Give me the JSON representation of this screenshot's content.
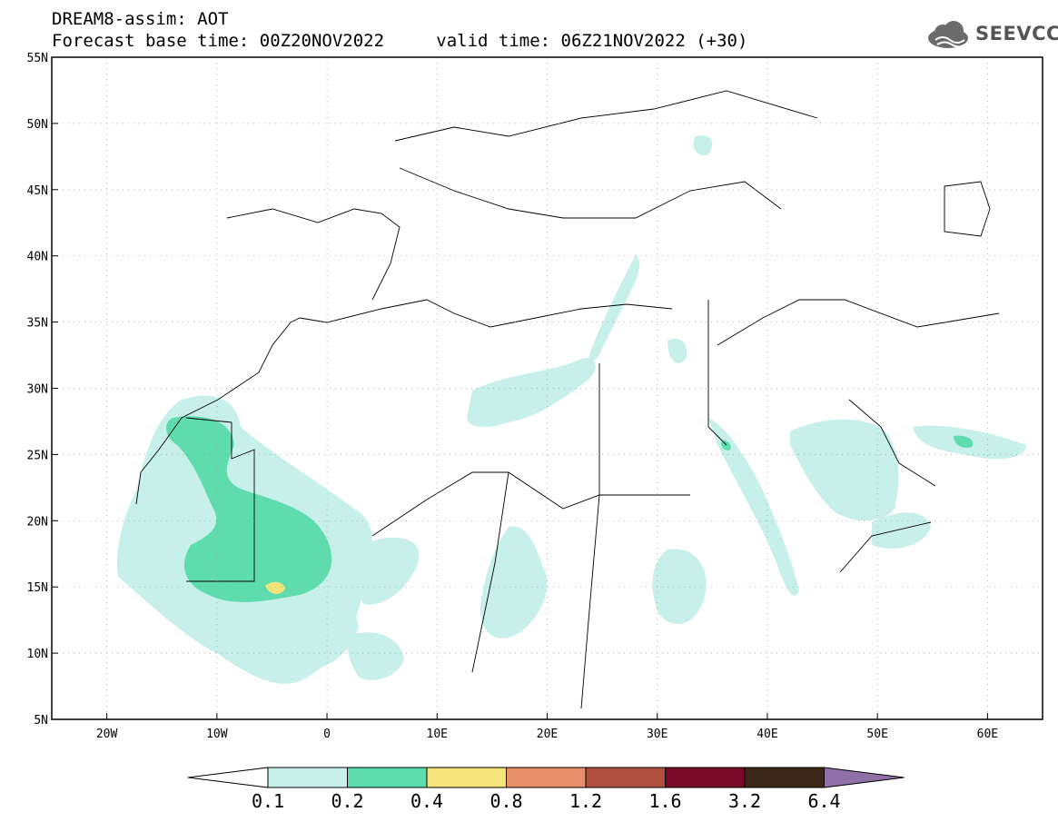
{
  "header": {
    "title": "DREAM8-assim: AOT",
    "base_time": "Forecast base time: 00Z20NOV2022",
    "valid_time": "valid time: 06Z21NOV2022 (+30)"
  },
  "logo": {
    "text": "SEEVCCC",
    "icon": "cloud-logo-icon"
  },
  "map": {
    "projection": "lat-lon",
    "lon_range": [
      -25,
      65
    ],
    "lat_range": [
      5,
      55
    ],
    "lat_labels": [
      "55N",
      "50N",
      "45N",
      "40N",
      "35N",
      "30N",
      "25N",
      "20N",
      "15N",
      "10N",
      "5N"
    ],
    "lat_values": [
      55,
      50,
      45,
      40,
      35,
      30,
      25,
      20,
      15,
      10,
      5
    ],
    "lon_labels": [
      "20W",
      "10W",
      "0",
      "10E",
      "20E",
      "30E",
      "40E",
      "50E",
      "60E"
    ],
    "lon_values": [
      -20,
      -10,
      0,
      10,
      20,
      30,
      40,
      50,
      60
    ],
    "gridlines": "dotted"
  },
  "colorbar": {
    "labels": [
      "0.1",
      "0.2",
      "0.4",
      "0.8",
      "1.2",
      "1.6",
      "3.2",
      "6.4"
    ],
    "colors": [
      "#ffffff",
      "#c8f0ea",
      "#5edcae",
      "#f5e47a",
      "#e88e68",
      "#b05040",
      "#7a0a28",
      "#3c2818",
      "#9070a8"
    ]
  },
  "colors": {
    "low": "#c8f0ea",
    "mid": "#5edcae",
    "high": "#f5e47a",
    "frame": "#000000"
  }
}
